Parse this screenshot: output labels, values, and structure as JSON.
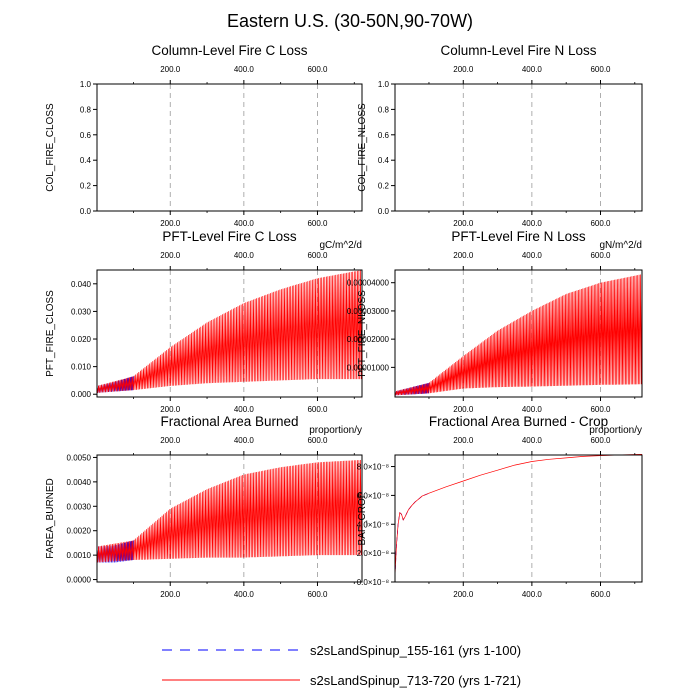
{
  "figure_title": "Eastern U.S. (30-50N,90-70W)",
  "colors": {
    "run1": "#0000ff",
    "run2": "#ff0000",
    "grid": "#9a9a9a",
    "axis": "#000000"
  },
  "legend": [
    {
      "label": "s2sLandSpinup_155-161 (yrs 1-100)",
      "color": "#0000ff",
      "style": "dashed"
    },
    {
      "label": "s2sLandSpinup_713-720 (yrs 1-721)",
      "color": "#ff0000",
      "style": "solid"
    }
  ],
  "chart_data": [
    {
      "type": "line",
      "title": "Column-Level Fire C Loss",
      "ylabel": "COL_FIRE_CLOSS",
      "units": "",
      "xlim": [
        1,
        721
      ],
      "ylim": [
        0,
        1
      ],
      "x_ticks": [
        200,
        400,
        600
      ],
      "x_tick_labels": [
        "200.0",
        "400.0",
        "600.0"
      ],
      "y_ticks": [
        0,
        0.2,
        0.4,
        0.6,
        0.8,
        1.0
      ],
      "y_tick_labels": [
        "0.0",
        "0.2",
        "0.4",
        "0.6",
        "0.8",
        "1.0"
      ],
      "series": []
    },
    {
      "type": "line",
      "title": "Column-Level Fire N Loss",
      "ylabel": "COL_FIRE_NLOSS",
      "units": "",
      "xlim": [
        1,
        721
      ],
      "ylim": [
        0,
        1
      ],
      "x_ticks": [
        200,
        400,
        600
      ],
      "x_tick_labels": [
        "200.0",
        "400.0",
        "600.0"
      ],
      "y_ticks": [
        0,
        0.2,
        0.4,
        0.6,
        0.8,
        1.0
      ],
      "y_tick_labels": [
        "0.0",
        "0.2",
        "0.4",
        "0.6",
        "0.8",
        "1.0"
      ],
      "series": []
    },
    {
      "type": "line",
      "title": "PFT-Level Fire C Loss",
      "ylabel": "PFT_FIRE_CLOSS",
      "units": "gC/m^2/d",
      "xlim": [
        1,
        721
      ],
      "ylim": [
        -0.001,
        0.045
      ],
      "x_ticks": [
        200,
        400,
        600
      ],
      "x_tick_labels": [
        "200.0",
        "400.0",
        "600.0"
      ],
      "y_ticks": [
        0,
        0.01,
        0.02,
        0.03,
        0.04
      ],
      "y_tick_labels": [
        "0.000",
        "0.010",
        "0.020",
        "0.030",
        "0.040"
      ],
      "series": [
        {
          "name": "s2sLandSpinup_155-161",
          "color": "#0000ff",
          "kind": "oscillation",
          "x_range": [
            1,
            100
          ],
          "envelope": {
            "x": [
              1,
              50,
              100
            ],
            "max": [
              0.003,
              0.0045,
              0.0065
            ],
            "min": [
              0.0005,
              0.001,
              0.0015
            ]
          }
        },
        {
          "name": "s2sLandSpinup_713-720",
          "color": "#ff0000",
          "kind": "oscillation",
          "x_range": [
            1,
            721
          ],
          "envelope": {
            "x": [
              1,
              100,
              200,
              300,
              400,
              500,
              600,
              721
            ],
            "max": [
              0.003,
              0.0065,
              0.017,
              0.026,
              0.033,
              0.038,
              0.042,
              0.045
            ],
            "min": [
              0.0005,
              0.0015,
              0.003,
              0.004,
              0.0045,
              0.005,
              0.0055,
              0.0055
            ]
          }
        }
      ]
    },
    {
      "type": "line",
      "title": "PFT-Level Fire N Loss",
      "ylabel": "PFT_FIRE_NLOSS",
      "units": "gN/m^2/d",
      "xlim": [
        1,
        721
      ],
      "ylim": [
        -5e-07,
        4.45e-05
      ],
      "x_ticks": [
        200,
        400,
        600
      ],
      "x_tick_labels": [
        "200.0",
        "400.0",
        "600.0"
      ],
      "y_ticks": [
        1e-05,
        2e-05,
        3e-05,
        4e-05
      ],
      "y_tick_labels": [
        "0.00001000",
        "0.00002000",
        "0.00003000",
        "0.00004000"
      ],
      "series": [
        {
          "name": "s2sLandSpinup_155-161",
          "color": "#0000ff",
          "kind": "oscillation",
          "x_range": [
            1,
            100
          ],
          "envelope": {
            "x": [
              1,
              50,
              100
            ],
            "max": [
              1.5e-06,
              3e-06,
              4.5e-06
            ],
            "min": [
              1e-07,
              4e-07,
              8e-07
            ]
          }
        },
        {
          "name": "s2sLandSpinup_713-720",
          "color": "#ff0000",
          "kind": "oscillation",
          "x_range": [
            1,
            721
          ],
          "envelope": {
            "x": [
              1,
              100,
              200,
              300,
              400,
              500,
              600,
              721
            ],
            "max": [
              1.5e-06,
              4.5e-06,
              1.4e-05,
              2.3e-05,
              3e-05,
              3.6e-05,
              4e-05,
              4.3e-05
            ],
            "min": [
              1e-07,
              8e-07,
              2.5e-06,
              3e-06,
              3.2e-06,
              3.5e-06,
              3.8e-06,
              4e-06
            ]
          }
        }
      ]
    },
    {
      "type": "line",
      "title": "Fractional Area Burned",
      "ylabel": "FAREA_BURNED",
      "units": "proportion/y",
      "xlim": [
        1,
        721
      ],
      "ylim": [
        -0.0001,
        0.0051
      ],
      "x_ticks": [
        200,
        400,
        600
      ],
      "x_tick_labels": [
        "200.0",
        "400.0",
        "600.0"
      ],
      "y_ticks": [
        0,
        0.001,
        0.002,
        0.003,
        0.004,
        0.005
      ],
      "y_tick_labels": [
        "0.0000",
        "0.0010",
        "0.0020",
        "0.0030",
        "0.0040",
        "0.0050"
      ],
      "series": [
        {
          "name": "s2sLandSpinup_155-161",
          "color": "#0000ff",
          "kind": "oscillation",
          "x_range": [
            1,
            100
          ],
          "envelope": {
            "x": [
              1,
              50,
              100
            ],
            "max": [
              0.00135,
              0.0014,
              0.0016
            ],
            "min": [
              0.0007,
              0.0007,
              0.0008
            ]
          }
        },
        {
          "name": "s2sLandSpinup_713-720",
          "color": "#ff0000",
          "kind": "oscillation",
          "x_range": [
            1,
            721
          ],
          "envelope": {
            "x": [
              1,
              100,
              200,
              300,
              400,
              500,
              600,
              721
            ],
            "max": [
              0.00135,
              0.0016,
              0.0029,
              0.0037,
              0.0043,
              0.0046,
              0.0048,
              0.0049
            ],
            "min": [
              0.0007,
              0.0008,
              0.00085,
              0.0009,
              0.0009,
              0.00095,
              0.001,
              0.001
            ]
          }
        }
      ]
    },
    {
      "type": "line",
      "title": "Fractional Area Burned - Crop",
      "ylabel": "BAF_CROP",
      "units": "proportion/y",
      "xlim": [
        1,
        721
      ],
      "ylim": [
        0,
        8.8e-08
      ],
      "x_ticks": [
        200,
        400,
        600
      ],
      "x_tick_labels": [
        "200.0",
        "400.0",
        "600.0"
      ],
      "y_ticks": [
        0,
        2e-08,
        4e-08,
        6e-08,
        8e-08
      ],
      "y_tick_labels": [
        "0.0×10⁻⁸",
        "2.0×10⁻⁸",
        "4.0×10⁻⁸",
        "6.0×10⁻⁸",
        "8.0×10⁻⁸"
      ],
      "series": [
        {
          "name": "s2sLandSpinup_155-161",
          "color": "#0000ff",
          "kind": "smooth",
          "dashed": true,
          "x": [
            1,
            5,
            10,
            15,
            20,
            25,
            30,
            40,
            50,
            60,
            70,
            80,
            90,
            100
          ],
          "y": [
            4e-09,
            2.5e-08,
            4e-08,
            4.8e-08,
            4.7e-08,
            4.3e-08,
            4.5e-08,
            5e-08,
            5.3e-08,
            5.55e-08,
            5.75e-08,
            5.95e-08,
            6.05e-08,
            6.15e-08
          ]
        },
        {
          "name": "s2sLandSpinup_713-720",
          "color": "#ff0000",
          "kind": "smooth",
          "dashed": false,
          "x": [
            1,
            5,
            10,
            15,
            20,
            25,
            30,
            40,
            50,
            60,
            70,
            80,
            90,
            100,
            150,
            200,
            250,
            300,
            350,
            400,
            450,
            500,
            550,
            600,
            650,
            721
          ],
          "y": [
            4e-09,
            2.5e-08,
            4e-08,
            4.8e-08,
            4.7e-08,
            4.3e-08,
            4.5e-08,
            5e-08,
            5.3e-08,
            5.55e-08,
            5.75e-08,
            5.95e-08,
            6.05e-08,
            6.15e-08,
            6.6e-08,
            7e-08,
            7.4e-08,
            7.75e-08,
            8.1e-08,
            8.35e-08,
            8.5e-08,
            8.6e-08,
            8.7e-08,
            8.75e-08,
            8.8e-08,
            8.85e-08
          ]
        }
      ]
    }
  ]
}
